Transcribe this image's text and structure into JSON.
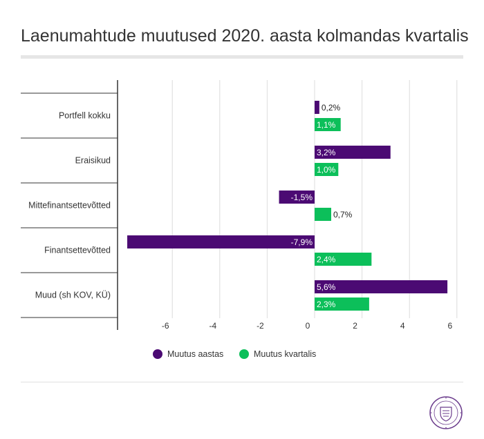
{
  "chart_data": {
    "type": "bar",
    "orientation": "horizontal",
    "title": "Laenumahtude muutused 2020. aasta kolmandas kvartalis",
    "categories": [
      "Portfell kokku",
      "Eraisikud",
      "Mittefinantsettevõtted",
      "Finantsettevõtted",
      "Muud (sh KOV, KÜ)"
    ],
    "series": [
      {
        "name": "Muutus aastas",
        "color": "#4b0a73",
        "values": [
          0.2,
          3.2,
          -1.5,
          -7.9,
          5.6
        ],
        "labels": [
          "0,2%",
          "3,2%",
          "-1,5%",
          "-7,9%",
          "5,6%"
        ]
      },
      {
        "name": "Muutus kvartalis",
        "color": "#0cbf5a",
        "values": [
          1.1,
          1.0,
          0.7,
          2.4,
          2.3
        ],
        "labels": [
          "1,1%",
          "1,0%",
          "0,7%",
          "2,4%",
          "2,3%"
        ]
      }
    ],
    "xlim": [
      -8,
      6.3
    ],
    "xticks": [
      -6,
      -4,
      -2,
      0,
      2,
      4,
      6
    ],
    "grid": true,
    "legend": "bottom"
  },
  "logo": {
    "name": "seal-logo",
    "color": "#6b3c8c"
  }
}
